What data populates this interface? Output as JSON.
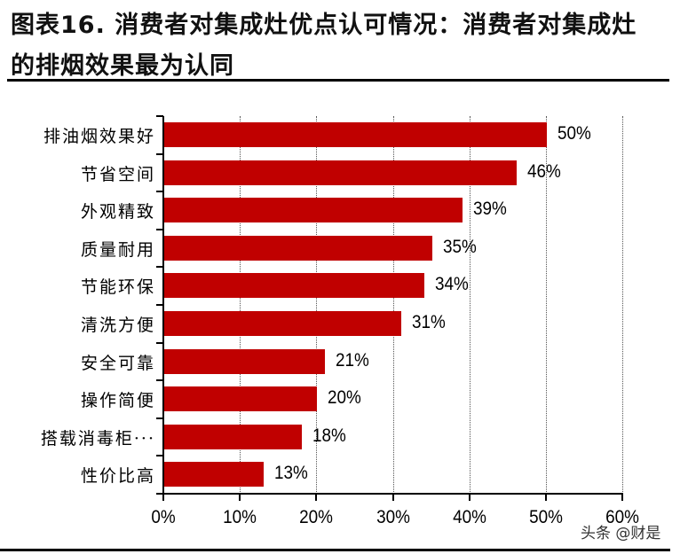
{
  "title": {
    "line1": "图表16. 消费者对集成灶优点认可情况：消费者对集成灶",
    "line2": "的排烟效果最为认同"
  },
  "watermark": "头条 @财是",
  "colors": {
    "bar": "#c00000",
    "axis": "#000000",
    "grid": "#555555"
  },
  "chart_data": {
    "type": "bar",
    "orientation": "horizontal",
    "title": "图表16. 消费者对集成灶优点认可情况：消费者对集成灶的排烟效果最为认同",
    "categories": [
      "排油烟效果好",
      "节省空间",
      "外观精致",
      "质量耐用",
      "节能环保",
      "清洗方便",
      "安全可靠",
      "操作简便",
      "搭载消毒柜···",
      "性价比高"
    ],
    "values": [
      50,
      46,
      39,
      35,
      34,
      31,
      21,
      20,
      18,
      13
    ],
    "value_labels": [
      "50%",
      "46%",
      "39%",
      "35%",
      "34%",
      "31%",
      "21%",
      "20%",
      "18%",
      "13%"
    ],
    "xlabel": "",
    "ylabel": "",
    "xlim": [
      0,
      60
    ],
    "x_ticks": [
      "0%",
      "10%",
      "20%",
      "30%",
      "40%",
      "50%",
      "60%"
    ],
    "grid": "vertical dotted",
    "legend": "none",
    "unit": "%"
  }
}
